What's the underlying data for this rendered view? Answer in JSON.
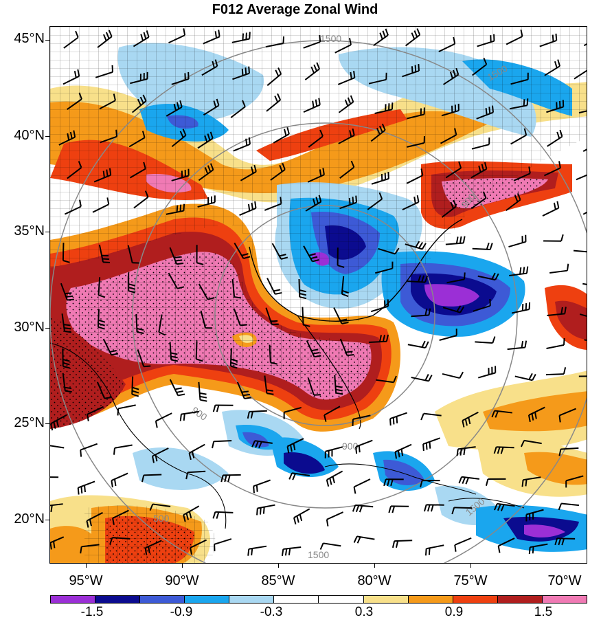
{
  "title": "F012 Average Zonal Wind",
  "lat_labels": [
    "45°N",
    "40°N",
    "35°N",
    "30°N",
    "25°N",
    "20°N"
  ],
  "lon_labels": [
    "95°W",
    "90°W",
    "85°W",
    "80°W",
    "75°W",
    "70°W"
  ],
  "range_ring_labels": [
    "1500",
    "900",
    "900",
    "900",
    "1500",
    "1500",
    "500",
    "1500"
  ],
  "colorbar": {
    "colors": [
      "#9b2fd6",
      "#0b0b8f",
      "#3d5ad6",
      "#1aa6ee",
      "#a9d8f2",
      "#ffffff",
      "#ffffff",
      "#f8e08a",
      "#f59a1a",
      "#ee4010",
      "#b01e1e",
      "#f07ab4"
    ],
    "labels": [
      "-1.5",
      "-0.9",
      "-0.3",
      "0.3",
      "0.9",
      "1.5"
    ]
  },
  "colors": {
    "neg_strong": "#0b0b8f",
    "neg_mid": "#3d5ad6",
    "neg_light": "#1aa6ee",
    "neg_pale": "#a9d8f2",
    "pos_pale": "#f8e08a",
    "pos_orange": "#f59a1a",
    "pos_red": "#ee4010",
    "pos_dark": "#b01e1e",
    "pos_pink": "#f07ab4",
    "purple": "#9b2fd6"
  }
}
